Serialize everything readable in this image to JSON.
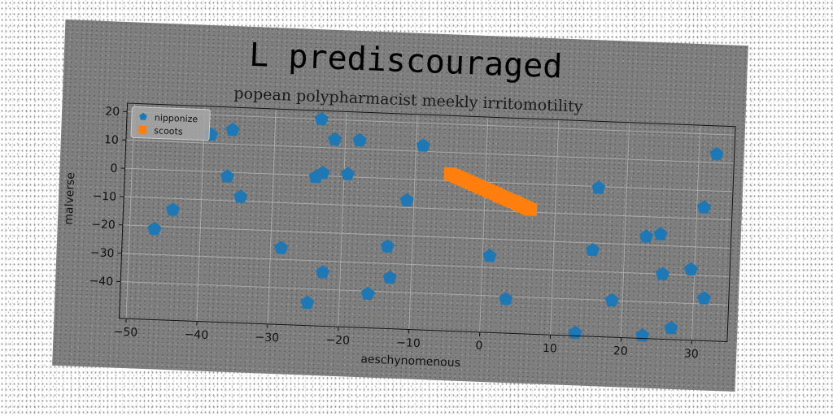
{
  "chart_data": {
    "type": "scatter",
    "suptitle": "L prediscouraged",
    "title": "popean polypharmacist meekly irritomotility",
    "xlabel": "aeschynomenous",
    "ylabel": "malverse",
    "xlim": [
      -51,
      35
    ],
    "ylim": [
      -53,
      23
    ],
    "xticks": [
      -50,
      -40,
      -30,
      -20,
      -10,
      0,
      10,
      20,
      30
    ],
    "yticks": [
      20,
      10,
      0,
      -10,
      -20,
      -30,
      -40
    ],
    "grid": true,
    "legend_position": "top-left",
    "series": [
      {
        "name": "nipponize",
        "marker": "pentagon",
        "color": "#1f77b4",
        "points": [
          [
            -46.5,
            -21
          ],
          [
            -44,
            -14
          ],
          [
            -39,
            13
          ],
          [
            -36,
            15
          ],
          [
            -36.5,
            -1.5
          ],
          [
            -34.5,
            -8.5
          ],
          [
            -28.5,
            -26
          ],
          [
            -24.5,
            -45
          ],
          [
            -23.5,
            20
          ],
          [
            -24,
            -0.5
          ],
          [
            -23,
            1
          ],
          [
            -22.5,
            -34
          ],
          [
            -21.5,
            13
          ],
          [
            -19.5,
            1
          ],
          [
            -18,
            13
          ],
          [
            -16,
            -41
          ],
          [
            -13.5,
            -24
          ],
          [
            -13,
            -35
          ],
          [
            -11,
            -7.5
          ],
          [
            -9,
            12
          ],
          [
            1,
            -26
          ],
          [
            3.5,
            -41
          ],
          [
            13.5,
            -52
          ],
          [
            15.5,
            -22.5
          ],
          [
            16,
            -0.5
          ],
          [
            18.5,
            -40
          ],
          [
            23,
            -52
          ],
          [
            23,
            -17
          ],
          [
            25,
            -16
          ],
          [
            25.5,
            -30
          ],
          [
            27,
            -49
          ],
          [
            29.5,
            -28
          ],
          [
            31,
            -6
          ],
          [
            31.5,
            -38
          ],
          [
            32.5,
            13
          ]
        ]
      },
      {
        "name": "scoots",
        "marker": "square",
        "color": "#ff7f0e",
        "points": [
          [
            -5,
            2.5
          ],
          [
            -4.5,
            2
          ],
          [
            -4,
            1.5
          ],
          [
            -3.5,
            1
          ],
          [
            -3,
            0.5
          ],
          [
            -2.5,
            0
          ],
          [
            -2,
            -0.5
          ],
          [
            -1.5,
            -1
          ],
          [
            -1,
            -1.5
          ],
          [
            -0.5,
            -2
          ],
          [
            0,
            -2.5
          ],
          [
            0.5,
            -3
          ],
          [
            1,
            -3.5
          ],
          [
            1.5,
            -4
          ],
          [
            2,
            -4.5
          ],
          [
            2.5,
            -5
          ],
          [
            3,
            -5.5
          ],
          [
            3.5,
            -6
          ],
          [
            4,
            -6.5
          ],
          [
            4.5,
            -7
          ],
          [
            5,
            -7.5
          ],
          [
            5.5,
            -8
          ],
          [
            6,
            -8.5
          ],
          [
            6.5,
            -9
          ]
        ]
      }
    ]
  }
}
